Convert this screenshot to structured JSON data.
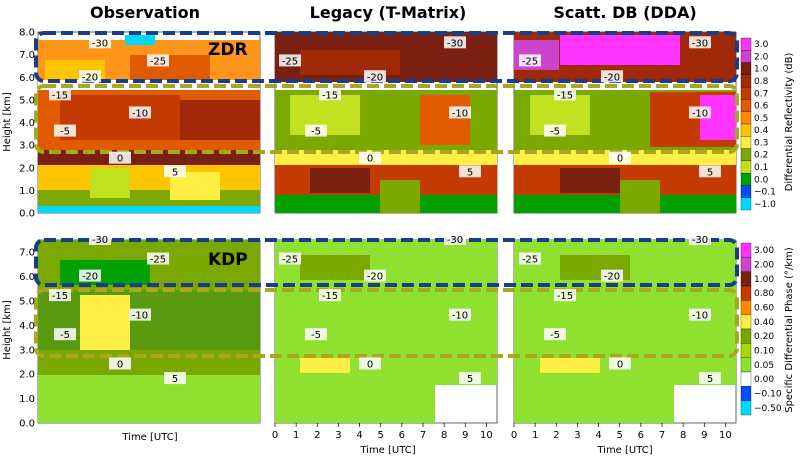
{
  "chart_data": {
    "type": "heatmap",
    "column_titles": [
      "Observation",
      "Legacy (T-Matrix)",
      "Scatt. DB (DDA)"
    ],
    "rows": [
      {
        "variable": "ZDR",
        "ylabel": "Height [km]",
        "yticks": [
          "0.0",
          "1.0",
          "2.0",
          "3.0",
          "4.0",
          "5.0",
          "6.0",
          "7.0",
          "8.0"
        ],
        "ylim": [
          0,
          8
        ],
        "colorbar_label": "Differential Reflectivity (dB)",
        "colorbar_ticks": [
          "3.0",
          "2.0",
          "1.0",
          "0.8",
          "0.7",
          "0.6",
          "0.5",
          "0.4",
          "0.3",
          "0.2",
          "0.1",
          "0.0",
          "−0.1",
          "−1.0"
        ],
        "colors": [
          "#ff33ff",
          "#cc44cc",
          "#7a2010",
          "#a02a08",
          "#c43a00",
          "#e05a00",
          "#ff8a00",
          "#ffc400",
          "#ffee44",
          "#7aa800",
          "#c0e020",
          "#00a000",
          "#0050ff",
          "#00d8ff"
        ],
        "temperature_contours_C": [
          "-30",
          "-25",
          "-20",
          "-15",
          "-10",
          "-5",
          "0",
          "5"
        ],
        "height_bands_km": [
          [
            5.7,
            7.8
          ],
          [
            2.9,
            5.7
          ]
        ]
      },
      {
        "variable": "KDP",
        "ylabel": "Height [km]",
        "yticks": [
          "0.0",
          "1.0",
          "2.0",
          "3.0",
          "4.0",
          "5.0",
          "6.0",
          "7.0"
        ],
        "ylim": [
          0,
          7.5
        ],
        "colorbar_label": "Specific Differential Phase (°/km)",
        "colorbar_ticks": [
          "3.00",
          "2.00",
          "1.00",
          "0.80",
          "0.60",
          "0.40",
          "0.20",
          "0.10",
          "0.05",
          "0.00",
          "−0.10",
          "−0.50"
        ],
        "colors": [
          "#ff33ff",
          "#cc44cc",
          "#7a2010",
          "#c43a00",
          "#ff8a00",
          "#ffee44",
          "#7aa800",
          "#a8d800",
          "#90e030",
          "#ffffff",
          "#0050ff",
          "#00d8ff"
        ],
        "temperature_contours_C": [
          "-30",
          "-25",
          "-20",
          "-15",
          "-10",
          "-5",
          "0",
          "5"
        ],
        "height_bands_km": [
          [
            5.7,
            7.8
          ],
          [
            2.9,
            5.7
          ]
        ]
      }
    ],
    "xlabel": "Time [UTC]",
    "xticks": [
      "0",
      "1",
      "2",
      "3",
      "4",
      "5",
      "6",
      "7",
      "8",
      "9",
      "10"
    ],
    "xlim": [
      0,
      10.5
    ]
  }
}
